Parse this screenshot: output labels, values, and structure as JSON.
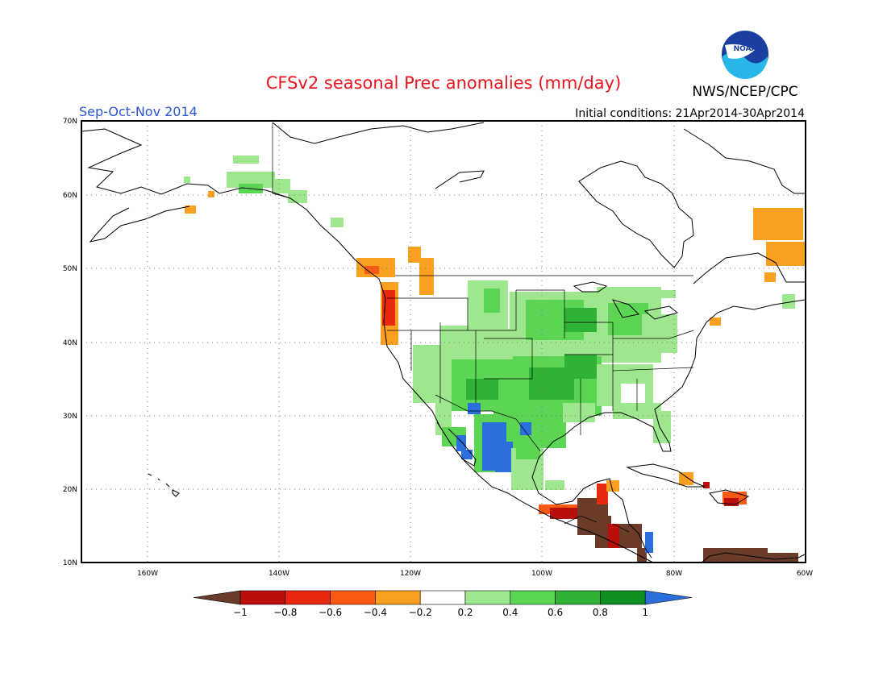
{
  "header": {
    "title": "CFSv2 seasonal Prec anomalies (mm/day)",
    "agency": "NWS/NCEP/CPC",
    "logo_text": "NOAA"
  },
  "map": {
    "season": "Sep-Oct-Nov 2014",
    "initial_conditions": "Initial conditions: 21Apr2014-30Apr2014",
    "lon_range": [
      -170,
      -60
    ],
    "lat_range": [
      10,
      70
    ],
    "lat_labels": [
      "70N",
      "60N",
      "50N",
      "40N",
      "30N",
      "20N",
      "10N"
    ],
    "lon_labels": [
      "160W",
      "140W",
      "120W",
      "100W",
      "80W",
      "60W"
    ]
  },
  "colorbar": {
    "tick_labels": [
      "−1",
      "−0.8",
      "−0.6",
      "−0.4",
      "−0.2",
      "0.2",
      "0.4",
      "0.6",
      "0.8",
      "1"
    ],
    "colors": [
      "#6b3b2a",
      "#b80f0a",
      "#e8280f",
      "#fb5a14",
      "#f9a021",
      "#ffffff",
      "#9fe78f",
      "#5bd553",
      "#2fb235",
      "#0d8f22",
      "#2a6fdb"
    ]
  },
  "colors": {
    "title": "#e8141e",
    "season": "#2b56d6"
  }
}
